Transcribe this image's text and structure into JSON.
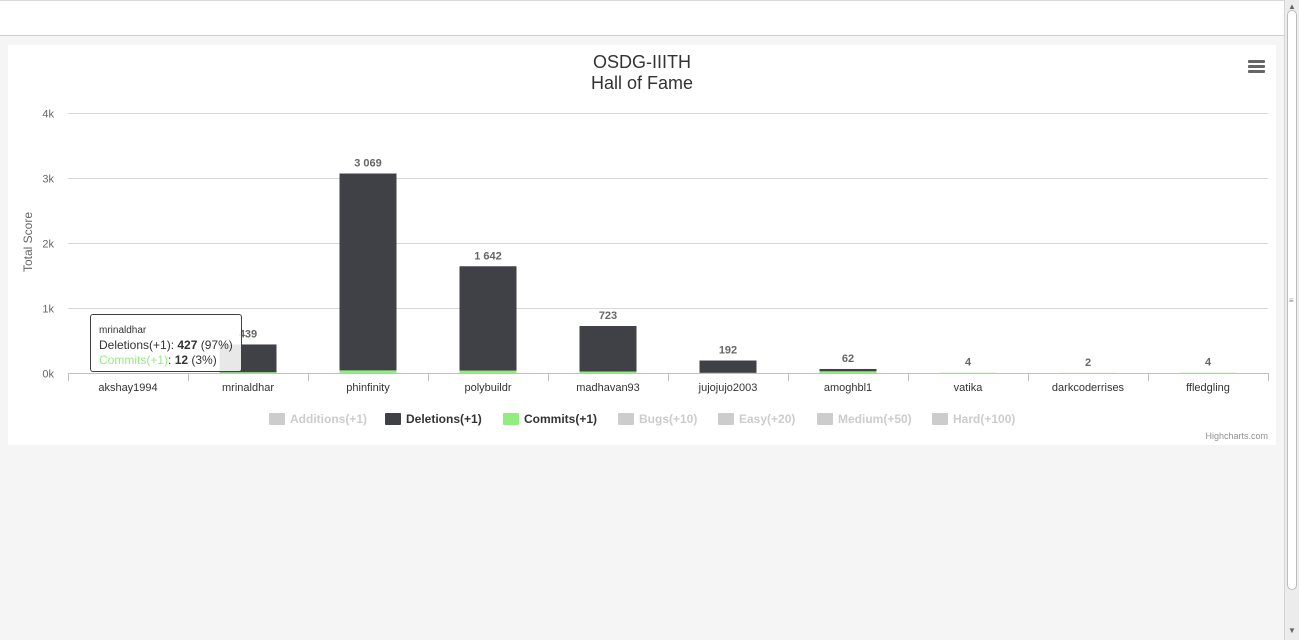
{
  "chart": {
    "title": "OSDG-IIITH",
    "subtitle": "Hall of Fame",
    "credits": "Highcharts.com"
  },
  "tooltip": {
    "header": "mrinaldhar",
    "rows": [
      {
        "series": "Deletions(+1)",
        "value": "427",
        "pct": "(97%)",
        "color": "#404047"
      },
      {
        "series": "Commits(+1)",
        "value": "12",
        "pct": "(3%)",
        "color": "#90ee7e"
      }
    ]
  },
  "legend": [
    {
      "label": "Additions(+1)",
      "visible": false,
      "color": "#cccccc"
    },
    {
      "label": "Deletions(+1)",
      "visible": true,
      "color": "#404047"
    },
    {
      "label": "Commits(+1)",
      "visible": true,
      "color": "#90ee7e"
    },
    {
      "label": "Bugs(+10)",
      "visible": false,
      "color": "#cccccc"
    },
    {
      "label": "Easy(+20)",
      "visible": false,
      "color": "#cccccc"
    },
    {
      "label": "Medium(+50)",
      "visible": false,
      "color": "#cccccc"
    },
    {
      "label": "Hard(+100)",
      "visible": false,
      "color": "#cccccc"
    }
  ],
  "chart_data": {
    "type": "bar",
    "stacked": true,
    "title": "OSDG-IIITH",
    "subtitle": "Hall of Fame",
    "xlabel": "",
    "ylabel": "Total Score",
    "ylim": [
      0,
      4000
    ],
    "yticks": [
      0,
      1000,
      2000,
      3000,
      4000
    ],
    "ytick_labels": [
      "0k",
      "1k",
      "2k",
      "3k",
      "4k"
    ],
    "grid": true,
    "legend_position": "bottom",
    "categories": [
      "akshay1994",
      "mrinaldhar",
      "phinfinity",
      "polybuildr",
      "madhavan93",
      "jujojujo2003",
      "amoghbl1",
      "vatika",
      "darkcoderrises",
      "ffledgling"
    ],
    "series": [
      {
        "name": "Deletions(+1)",
        "color": "#404047",
        "values": [
          0,
          427,
          3029,
          1605,
          700,
          189,
          36,
          0,
          0,
          0
        ]
      },
      {
        "name": "Commits(+1)",
        "color": "#90ee7e",
        "values": [
          0,
          12,
          40,
          37,
          23,
          3,
          26,
          4,
          2,
          4
        ]
      }
    ],
    "totals": [
      "",
      "439",
      "3 069",
      "1 642",
      "723",
      "192",
      "62",
      "4",
      "2",
      "4"
    ]
  }
}
